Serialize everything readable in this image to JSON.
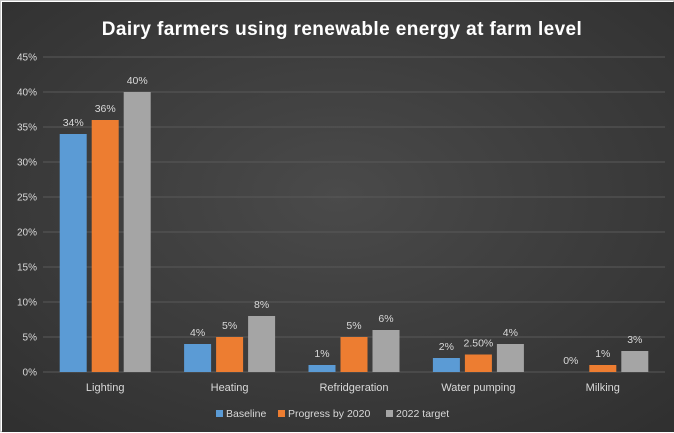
{
  "chart_data": {
    "type": "bar",
    "title": "Dairy farmers using renewable energy at farm level",
    "categories": [
      "Lighting",
      "Heating",
      "Refridgeration",
      "Water pumping",
      "Milking"
    ],
    "series": [
      {
        "name": "Baseline",
        "color": "#5b9bd5",
        "values": [
          34,
          4,
          1,
          2,
          0
        ],
        "labels": [
          "34%",
          "4%",
          "1%",
          "2%",
          "0%"
        ]
      },
      {
        "name": "Progress by 2020",
        "color": "#ed7d31",
        "values": [
          36,
          5,
          5,
          2.5,
          1
        ],
        "labels": [
          "36%",
          "5%",
          "5%",
          "2.50%",
          "1%"
        ]
      },
      {
        "name": "2022 target",
        "color": "#a5a5a5",
        "values": [
          40,
          8,
          6,
          4,
          3
        ],
        "labels": [
          "40%",
          "8%",
          "6%",
          "4%",
          "3%"
        ]
      }
    ],
    "ylim": [
      0,
      45
    ],
    "yticks": [
      0,
      5,
      10,
      15,
      20,
      25,
      30,
      35,
      40,
      45
    ],
    "ytick_labels": [
      "0%",
      "5%",
      "10%",
      "15%",
      "20%",
      "25%",
      "30%",
      "35%",
      "40%",
      "45%"
    ],
    "grid": true,
    "legend_position": "bottom",
    "background": "#404040",
    "gridline_color": "#595959"
  }
}
